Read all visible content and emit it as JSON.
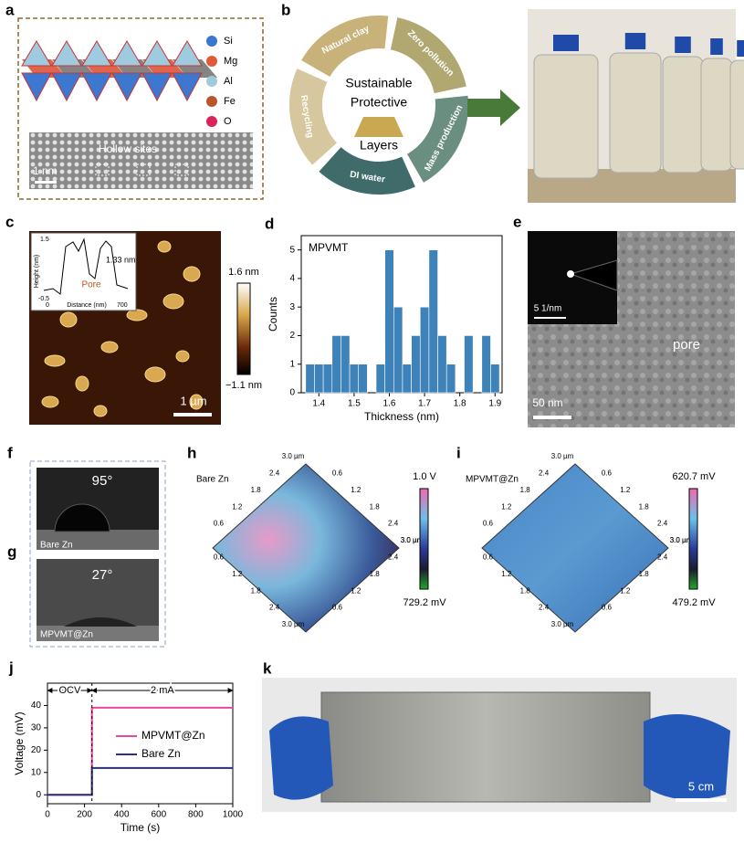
{
  "panels": {
    "a": {
      "label": "a",
      "legend": [
        "Si",
        "Mg",
        "Al",
        "Fe",
        "O"
      ],
      "annotation": "Hollow sites",
      "scale_bar": "1 nm"
    },
    "b": {
      "label": "b",
      "cycle": [
        "Natural clay",
        "Zero pollution",
        "Mass production",
        "DI water",
        "Recycling"
      ],
      "center": [
        "Sustainable",
        "Protective",
        "Layers"
      ]
    },
    "c": {
      "label": "c",
      "colorbar_max": "1.6 nm",
      "colorbar_min": "−1.1 nm",
      "scale_bar": "1 µm",
      "inset": {
        "height": "1.33 nm",
        "pore": "Pore",
        "ylabel": "Height (nm)",
        "xlabel": "Distance (nm)",
        "yticks": [
          1.5,
          -0.5
        ],
        "xticks": [
          0,
          700
        ]
      }
    },
    "e": {
      "label": "e",
      "inset_scale": "5 1/nm",
      "annotation": "pore",
      "scale_bar": "50 nm"
    },
    "f": {
      "label": "f",
      "angle": "95°",
      "sample": "Bare Zn"
    },
    "g": {
      "label": "g",
      "angle": "27°",
      "sample": "MPVMT@Zn"
    },
    "h": {
      "label": "h",
      "sample": "Bare Zn",
      "colorbar_max": "1.0 V",
      "colorbar_min": "729.2 mV",
      "ticks": [
        "0.6",
        "1.2",
        "1.8",
        "2.4",
        "3.0 µm"
      ]
    },
    "i": {
      "label": "i",
      "sample": "MPVMT@Zn",
      "colorbar_max": "620.7 mV",
      "colorbar_min": "479.2 mV",
      "ticks": [
        "0.6",
        "1.2",
        "1.8",
        "2.4",
        "3.0 µm"
      ]
    },
    "k": {
      "label": "k",
      "scale_bar": "5 cm"
    }
  },
  "chart_data": [
    {
      "type": "histogram",
      "panel": "d",
      "title": "MPVMT",
      "xlabel": "Thickness (nm)",
      "ylabel": "Counts",
      "color": "#3d82b8",
      "bins": [
        1.3625,
        1.3875,
        1.4125,
        1.4375,
        1.4625,
        1.4875,
        1.5125,
        1.5375,
        1.5625,
        1.5875,
        1.6125,
        1.6375,
        1.6625,
        1.6875,
        1.7125,
        1.7375,
        1.7625,
        1.7875,
        1.8125,
        1.8375,
        1.8625,
        1.8875,
        1.9125
      ],
      "values": [
        1,
        1,
        1,
        2,
        2,
        1,
        1,
        0,
        1,
        5,
        3,
        1,
        2,
        3,
        5,
        2,
        1,
        0,
        2,
        0,
        2,
        1
      ],
      "xlim": [
        1.35,
        1.92
      ],
      "ylim": [
        0,
        5.5
      ],
      "xticks": [
        1.4,
        1.5,
        1.6,
        1.7,
        1.8,
        1.9
      ],
      "yticks": [
        0,
        1,
        2,
        3,
        4,
        5
      ]
    },
    {
      "type": "line",
      "panel": "j",
      "xlabel": "Time (s)",
      "ylabel": "Voltage (mV)",
      "annotations": [
        "OCV",
        "2 mA"
      ],
      "x": [
        0,
        240,
        240,
        1000
      ],
      "series": [
        {
          "name": "MPVMT@Zn",
          "color": "#e8479e",
          "values": [
            0,
            0,
            39,
            39
          ]
        },
        {
          "name": "Bare Zn",
          "color": "#2b2f7c",
          "values": [
            0,
            0,
            12,
            12
          ]
        }
      ],
      "xlim": [
        0,
        1000
      ],
      "ylim": [
        -4,
        50
      ],
      "xticks": [
        0,
        200,
        400,
        600,
        800,
        1000
      ],
      "yticks": [
        0,
        10,
        20,
        30,
        40
      ]
    }
  ]
}
